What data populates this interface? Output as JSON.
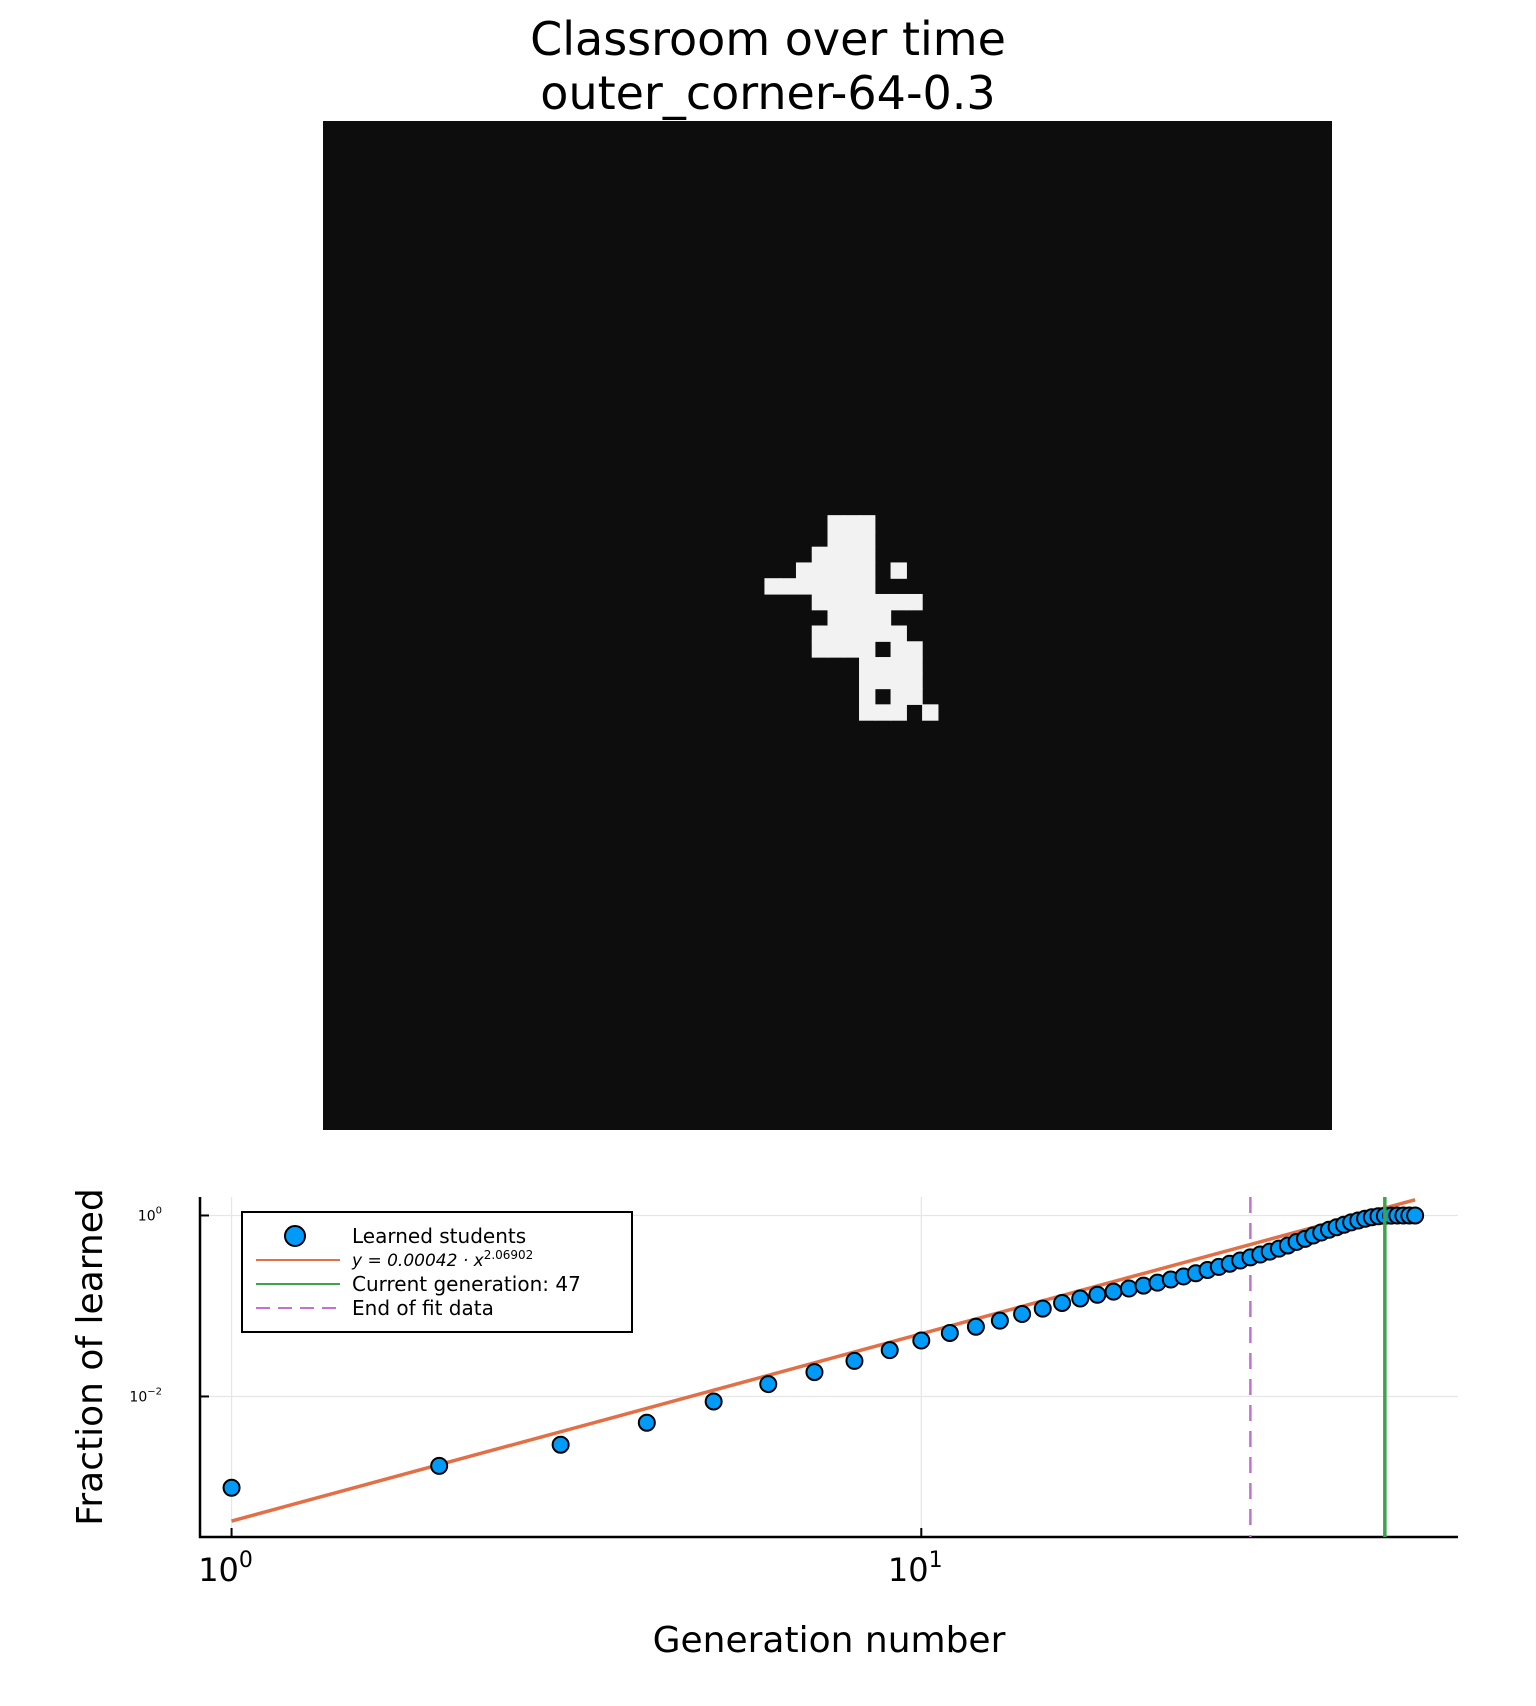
{
  "chart_data": [
    {
      "type": "heatmap",
      "title": "Classroom over time",
      "subtitle": "outer_corner-64-0.3",
      "grid_size": 64,
      "colors": {
        "background": "#0d0d0d",
        "learned": "#f2f2f2"
      },
      "learned_cells": [
        [
          32,
          25
        ],
        [
          33,
          25
        ],
        [
          34,
          25
        ],
        [
          32,
          26
        ],
        [
          33,
          26
        ],
        [
          34,
          26
        ],
        [
          31,
          27
        ],
        [
          32,
          27
        ],
        [
          33,
          27
        ],
        [
          34,
          27
        ],
        [
          30,
          28
        ],
        [
          31,
          28
        ],
        [
          32,
          28
        ],
        [
          33,
          28
        ],
        [
          34,
          28
        ],
        [
          36,
          28
        ],
        [
          28,
          29
        ],
        [
          29,
          29
        ],
        [
          30,
          29
        ],
        [
          31,
          29
        ],
        [
          32,
          29
        ],
        [
          33,
          29
        ],
        [
          34,
          29
        ],
        [
          31,
          30
        ],
        [
          32,
          30
        ],
        [
          33,
          30
        ],
        [
          34,
          30
        ],
        [
          35,
          30
        ],
        [
          36,
          30
        ],
        [
          37,
          30
        ],
        [
          32,
          31
        ],
        [
          33,
          31
        ],
        [
          34,
          31
        ],
        [
          35,
          31
        ],
        [
          31,
          32
        ],
        [
          32,
          32
        ],
        [
          33,
          32
        ],
        [
          34,
          32
        ],
        [
          35,
          32
        ],
        [
          36,
          32
        ],
        [
          31,
          33
        ],
        [
          32,
          33
        ],
        [
          33,
          33
        ],
        [
          34,
          33
        ],
        [
          36,
          33
        ],
        [
          37,
          33
        ],
        [
          34,
          34
        ],
        [
          35,
          34
        ],
        [
          36,
          34
        ],
        [
          37,
          34
        ],
        [
          34,
          35
        ],
        [
          35,
          35
        ],
        [
          36,
          35
        ],
        [
          37,
          35
        ],
        [
          34,
          36
        ],
        [
          36,
          36
        ],
        [
          37,
          36
        ],
        [
          34,
          37
        ],
        [
          35,
          37
        ],
        [
          36,
          37
        ],
        [
          38,
          37
        ]
      ]
    },
    {
      "type": "scatter",
      "xlabel": "Generation number",
      "ylabel": "Fraction of learned",
      "xscale": "log10",
      "yscale": "log10",
      "xlim": [
        0.9,
        60
      ],
      "ylim": [
        0.00028,
        1.6
      ],
      "x_ticks": [
        {
          "value": 1,
          "base": "10",
          "exp": "0"
        },
        {
          "value": 10,
          "base": "10",
          "exp": "1"
        }
      ],
      "y_ticks": [
        {
          "value": 1,
          "base": "10",
          "exp": "0"
        },
        {
          "value": 0.01,
          "base": "10",
          "exp": "−2"
        }
      ],
      "grid": true,
      "legend_position": "top-left",
      "series": [
        {
          "name": "Learned students",
          "kind": "scatter",
          "color": "#009af9",
          "x": [
            1,
            2,
            3,
            4,
            5,
            6,
            7,
            8,
            9,
            10,
            11,
            12,
            13,
            14,
            15,
            16,
            17,
            18,
            19,
            20,
            21,
            22,
            23,
            24,
            25,
            26,
            27,
            28,
            29,
            30,
            31,
            32,
            33,
            34,
            35,
            36,
            37,
            38,
            39,
            40,
            41,
            42,
            43,
            44,
            45,
            46,
            47,
            48,
            49,
            50,
            51,
            52
          ],
          "y": [
            0.00098,
            0.00171,
            0.00293,
            0.00513,
            0.00879,
            0.0137,
            0.0186,
            0.0247,
            0.0325,
            0.0415,
            0.0503,
            0.059,
            0.0688,
            0.0815,
            0.0935,
            0.108,
            0.121,
            0.133,
            0.144,
            0.156,
            0.168,
            0.181,
            0.196,
            0.212,
            0.23,
            0.25,
            0.27,
            0.293,
            0.318,
            0.344,
            0.37,
            0.398,
            0.43,
            0.466,
            0.51,
            0.552,
            0.6,
            0.648,
            0.695,
            0.742,
            0.79,
            0.84,
            0.88,
            0.92,
            0.955,
            0.98,
            0.99,
            0.995,
            0.998,
            0.999,
            1.0,
            1.0
          ]
        },
        {
          "name": "y = 0.00042 · x^2.06902",
          "name_parts": {
            "prefix": "y = 0.00042 · x",
            "exp": "2.06902"
          },
          "kind": "line",
          "color": "#e26f46",
          "a": 0.00042,
          "b": 2.06902,
          "x_range": [
            1,
            52
          ]
        },
        {
          "name": "Current generation: 47",
          "kind": "vline",
          "color": "#3da44d",
          "x": 47
        },
        {
          "name": "End of fit data",
          "kind": "vline_dashed",
          "color": "#c271d2",
          "x": 30
        }
      ]
    }
  ]
}
